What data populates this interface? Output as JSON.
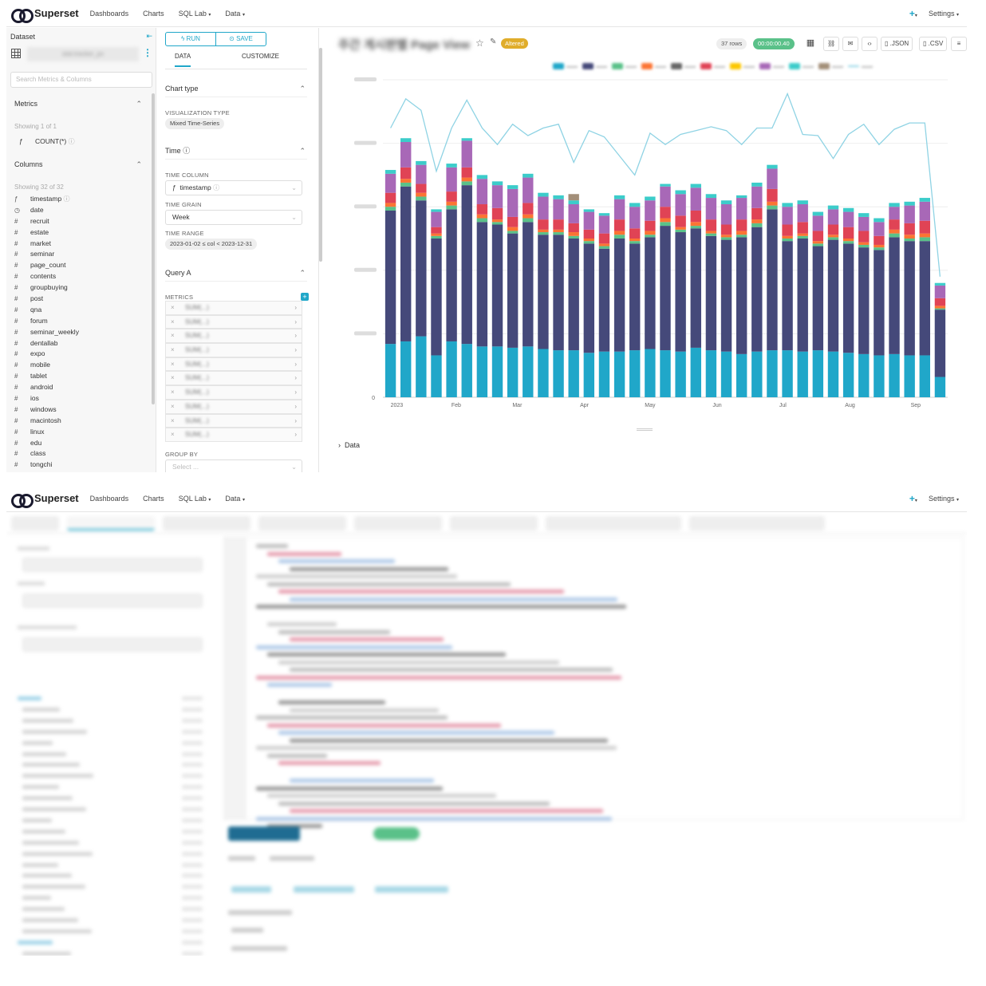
{
  "nav": {
    "brand": "Superset",
    "items": [
      {
        "label": "Dashboards"
      },
      {
        "label": "Charts"
      },
      {
        "label": "SQL Lab",
        "caret": "▾"
      },
      {
        "label": "Data",
        "caret": "▾"
      }
    ],
    "plus": "+",
    "plus_caret": "▾",
    "settings": "Settings",
    "settings_caret": "▾"
  },
  "dataset_panel": {
    "title": "Dataset",
    "dataset_name": "stat.tracker_pv",
    "search_placeholder": "Search Metrics & Columns",
    "metrics_label": "Metrics",
    "metrics_showing": "Showing 1 of 1",
    "metric_items": [
      {
        "type": "ƒ",
        "name": "COUNT(*)"
      }
    ],
    "columns_label": "Columns",
    "columns_showing": "Showing 32 of 32",
    "columns": [
      {
        "type": "ƒ",
        "name": "timestamp",
        "help": true
      },
      {
        "type": "◷",
        "name": "date"
      },
      {
        "type": "#",
        "name": "recruit"
      },
      {
        "type": "#",
        "name": "estate"
      },
      {
        "type": "#",
        "name": "market"
      },
      {
        "type": "#",
        "name": "seminar"
      },
      {
        "type": "#",
        "name": "page_count"
      },
      {
        "type": "#",
        "name": "contents"
      },
      {
        "type": "#",
        "name": "groupbuying"
      },
      {
        "type": "#",
        "name": "post"
      },
      {
        "type": "#",
        "name": "qna"
      },
      {
        "type": "#",
        "name": "forum"
      },
      {
        "type": "#",
        "name": "seminar_weekly"
      },
      {
        "type": "#",
        "name": "dentallab"
      },
      {
        "type": "#",
        "name": "expo"
      },
      {
        "type": "#",
        "name": "mobile"
      },
      {
        "type": "#",
        "name": "tablet"
      },
      {
        "type": "#",
        "name": "android"
      },
      {
        "type": "#",
        "name": "ios"
      },
      {
        "type": "#",
        "name": "windows"
      },
      {
        "type": "#",
        "name": "macintosh"
      },
      {
        "type": "#",
        "name": "linux"
      },
      {
        "type": "#",
        "name": "edu"
      },
      {
        "type": "#",
        "name": "class"
      },
      {
        "type": "#",
        "name": "tongchi"
      }
    ]
  },
  "control_panel": {
    "run_label": "RUN",
    "save_label": "SAVE",
    "tab_data": "DATA",
    "tab_customize": "CUSTOMIZE",
    "chart_type_label": "Chart type",
    "viz_type_label": "VISUALIZATION TYPE",
    "viz_type_value": "Mixed Time-Series",
    "time_label": "Time",
    "time_column_label": "TIME COLUMN",
    "time_column_value": "timestamp",
    "time_grain_label": "TIME GRAIN",
    "time_grain_value": "Week",
    "time_range_label": "TIME RANGE",
    "time_range_value": "2023-01-02 ≤ col < 2023-12-31",
    "query_a_label": "Query A",
    "metrics_label": "METRICS",
    "metric_rows": [
      "SUM(...)",
      "SUM(...)",
      "SUM(...)",
      "SUM(...)",
      "SUM(...)",
      "SUM(...)",
      "SUM(...)",
      "SUM(...)",
      "SUM(...)",
      "SUM(...)"
    ],
    "group_by_label": "GROUP BY",
    "group_by_placeholder": "Select ..."
  },
  "chart_header": {
    "title": "주간 게시판별 Page View",
    "altered": "Altered",
    "rows": "37 rows",
    "timer": "00:00:00.40",
    "json": ".JSON",
    "csv": ".CSV",
    "data_toggle": "Data"
  },
  "legend_colors": [
    "#20a7c9",
    "#45497a",
    "#5ac189",
    "#fc7433",
    "#666666",
    "#e04355",
    "#fcc700",
    "#a868b7",
    "#3cccca",
    "#a38f79",
    "#8fd3e4"
  ],
  "chart_data": {
    "type": "bar",
    "title": "",
    "xlabel": "",
    "ylabel": "",
    "x_ticks": [
      "2023",
      "Feb",
      "Mar",
      "Apr",
      "May",
      "Jun",
      "Jul",
      "Aug",
      "Sep"
    ],
    "y_ticks": [
      "0"
    ],
    "ylim": [
      0,
      250
    ],
    "stacked": true,
    "series": [
      {
        "color": "#20a7c9",
        "values": [
          42,
          44,
          48,
          33,
          44,
          42,
          40,
          40,
          39,
          40,
          38,
          37,
          37,
          35,
          36,
          36,
          37,
          38,
          37,
          36,
          39,
          37,
          36,
          34,
          36,
          37,
          37,
          36,
          37,
          36,
          35,
          34,
          33,
          34,
          33,
          33,
          16
        ]
      },
      {
        "color": "#45497a",
        "values": [
          105,
          122,
          107,
          92,
          104,
          125,
          98,
          96,
          90,
          98,
          90,
          91,
          88,
          86,
          81,
          89,
          84,
          88,
          98,
          94,
          94,
          90,
          88,
          92,
          98,
          111,
          86,
          89,
          82,
          88,
          86,
          84,
          83,
          92,
          90,
          90,
          53
        ]
      },
      {
        "color": "#5ac189",
        "values": [
          3,
          3,
          3,
          2,
          3,
          3,
          3,
          2,
          2,
          3,
          2,
          2,
          2,
          2,
          2,
          3,
          2,
          2,
          3,
          2,
          2,
          2,
          2,
          2,
          3,
          3,
          2,
          2,
          2,
          2,
          2,
          2,
          2,
          3,
          2,
          3,
          1
        ]
      },
      {
        "color": "#fc7433",
        "values": [
          3,
          3,
          3,
          2,
          3,
          3,
          3,
          2,
          3,
          3,
          2,
          2,
          3,
          2,
          2,
          3,
          2,
          3,
          3,
          2,
          3,
          2,
          2,
          3,
          3,
          3,
          2,
          2,
          2,
          2,
          2,
          2,
          2,
          3,
          3,
          3,
          2
        ]
      },
      {
        "color": "#e04355",
        "values": [
          8,
          9,
          7,
          5,
          8,
          8,
          8,
          9,
          8,
          9,
          8,
          8,
          7,
          7,
          8,
          9,
          8,
          8,
          9,
          9,
          9,
          9,
          8,
          9,
          9,
          10,
          9,
          9,
          8,
          8,
          9,
          9,
          7,
          8,
          9,
          10,
          6
        ]
      },
      {
        "color": "#a868b7",
        "values": [
          15,
          20,
          15,
          12,
          19,
          21,
          20,
          18,
          22,
          20,
          18,
          16,
          15,
          14,
          14,
          16,
          17,
          16,
          16,
          17,
          18,
          17,
          16,
          17,
          17,
          16,
          14,
          14,
          12,
          12,
          12,
          11,
          11,
          10,
          14,
          15,
          10
        ]
      },
      {
        "color": "#3cccca",
        "values": [
          3,
          3,
          3,
          2,
          3,
          2,
          3,
          3,
          3,
          3,
          3,
          3,
          3,
          2,
          2,
          3,
          3,
          3,
          2,
          3,
          3,
          3,
          3,
          2,
          3,
          3,
          3,
          3,
          3,
          3,
          3,
          3,
          3,
          3,
          3,
          3,
          2
        ]
      },
      {
        "color": "#a38f79",
        "values": [
          0,
          0,
          0,
          0,
          0,
          0,
          0,
          0,
          0,
          0,
          0,
          0,
          5,
          0,
          0,
          0,
          0,
          0,
          0,
          0,
          0,
          0,
          0,
          0,
          0,
          0,
          0,
          0,
          0,
          0,
          0,
          0,
          0,
          0,
          0,
          0,
          0
        ]
      }
    ],
    "line_series": {
      "color": "#8fd3e4",
      "values": [
        212,
        235,
        226,
        178,
        212,
        234,
        212,
        199,
        215,
        206,
        212,
        215,
        185,
        210,
        205,
        190,
        175,
        208,
        199,
        207,
        210,
        213,
        210,
        199,
        212,
        212,
        239,
        207,
        206,
        188,
        207,
        215,
        199,
        211,
        216,
        216,
        95
      ]
    }
  },
  "sql_lab": {
    "blurred": true
  }
}
